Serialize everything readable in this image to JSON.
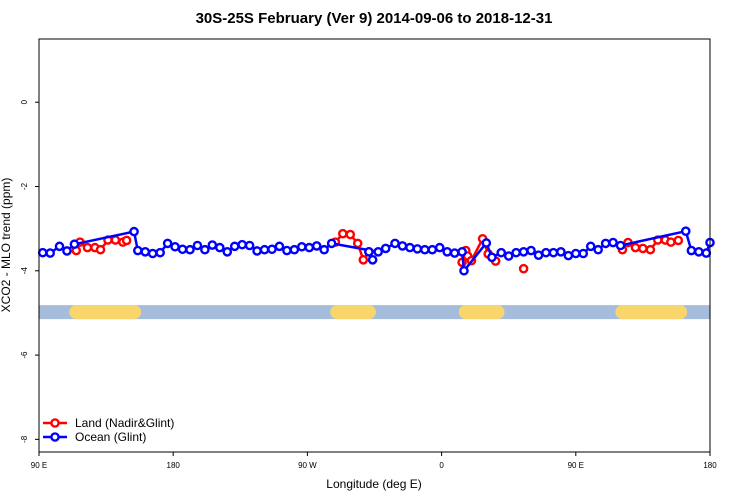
{
  "chart_data": {
    "type": "line",
    "title": "30S-25S February (Ver 9)   2014-09-06 to 2018-12-31",
    "xlabel": "Longitude (deg E)",
    "ylabel": "XCO2 - MLO trend (ppm)",
    "xlim": [
      90,
      450
    ],
    "ylim": [
      -8.3,
      1.5
    ],
    "x_ticks": [
      {
        "value": 90,
        "label": "90 E"
      },
      {
        "value": 162,
        "label": "180"
      },
      {
        "value": 234,
        "label": "90 W"
      },
      {
        "value": 306,
        "label": "0"
      },
      {
        "value": 378,
        "label": "90 E"
      },
      {
        "value": 450,
        "label": "180"
      }
    ],
    "y_ticks": [
      {
        "value": 0,
        "label": "0"
      },
      {
        "value": -2,
        "label": "-2"
      },
      {
        "value": -4,
        "label": "-4"
      },
      {
        "value": -6,
        "label": "-6"
      },
      {
        "value": -8,
        "label": "-8"
      }
    ],
    "grid": false,
    "legend_position": "bottom-left",
    "band": {
      "y": -4.98,
      "ocean_color": "#a5bddb",
      "land_color": "#f9d66c",
      "land_segments": [
        [
          110,
          141
        ],
        [
          250,
          267
        ],
        [
          319,
          333
        ],
        [
          335,
          336
        ],
        [
          403,
          434
        ]
      ]
    },
    "series": [
      {
        "name": "Land (Nadir&Glint)",
        "color": "#ff0000",
        "segments": [
          {
            "x": [
              110,
              112,
              116,
              120,
              123,
              127,
              131,
              135,
              137
            ],
            "y": [
              -3.52,
              -3.32,
              -3.45,
              -3.45,
              -3.5,
              -3.27,
              -3.27,
              -3.32,
              -3.28
            ]
          },
          {
            "x": [
              249,
              253,
              257,
              261,
              264,
              267
            ],
            "y": [
              -3.32,
              -3.12,
              -3.14,
              -3.35,
              -3.74,
              -3.55
            ]
          },
          {
            "x": [
              317,
              319,
              320,
              322,
              328,
              331,
              335
            ],
            "y": [
              -3.8,
              -3.52,
              -3.65,
              -3.76,
              -3.24,
              -3.6,
              -3.77
            ]
          },
          {
            "x": [
              350
            ],
            "y": [
              -3.95
            ]
          },
          {
            "x": [
              403,
              406,
              410,
              414,
              418,
              422,
              426,
              429,
              433
            ],
            "y": [
              -3.5,
              -3.33,
              -3.45,
              -3.47,
              -3.5,
              -3.27,
              -3.27,
              -3.32,
              -3.28
            ]
          }
        ]
      },
      {
        "name": "Ocean (Glint)",
        "color": "#0000ff",
        "segments": [
          {
            "x": [
              92,
              96,
              101,
              105,
              109,
              141,
              143,
              147,
              151,
              155,
              159,
              163,
              167,
              171,
              175,
              179,
              183,
              187,
              191,
              195,
              199,
              203,
              207,
              211,
              215,
              219,
              223,
              227,
              231,
              235,
              239,
              243,
              247,
              272,
              276,
              281,
              285,
              289,
              293,
              297,
              301,
              305,
              309,
              313,
              317,
              318,
              330,
              333,
              338,
              342,
              346,
              350,
              354,
              358,
              362,
              366,
              370,
              374,
              378,
              382,
              386,
              390,
              394,
              398,
              402,
              437,
              440,
              444,
              448,
              450
            ],
            "y": [
              -3.57,
              -3.58,
              -3.42,
              -3.53,
              -3.37,
              -3.07,
              -3.52,
              -3.55,
              -3.59,
              -3.57,
              -3.35,
              -3.43,
              -3.49,
              -3.5,
              -3.4,
              -3.5,
              -3.39,
              -3.45,
              -3.55,
              -3.42,
              -3.38,
              -3.4,
              -3.53,
              -3.5,
              -3.49,
              -3.42,
              -3.52,
              -3.5,
              -3.43,
              -3.45,
              -3.41,
              -3.5,
              -3.35,
              -3.55,
              -3.47,
              -3.35,
              -3.41,
              -3.45,
              -3.48,
              -3.5,
              -3.5,
              -3.45,
              -3.55,
              -3.58,
              -3.55,
              -4.0,
              -3.34,
              -3.68,
              -3.57,
              -3.65,
              -3.57,
              -3.55,
              -3.52,
              -3.63,
              -3.57,
              -3.57,
              -3.55,
              -3.64,
              -3.59,
              -3.59,
              -3.42,
              -3.5,
              -3.35,
              -3.33,
              -3.4,
              -3.06,
              -3.52,
              -3.55,
              -3.58,
              -3.33
            ]
          },
          {
            "x": [
              267,
              269
            ],
            "y": [
              -3.55,
              -3.74
            ]
          }
        ]
      }
    ]
  }
}
